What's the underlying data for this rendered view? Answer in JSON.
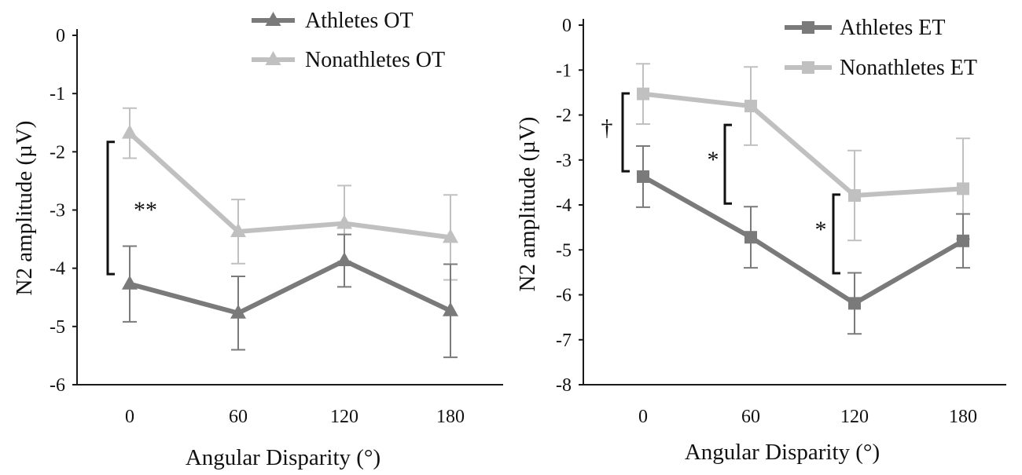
{
  "chart_data": [
    {
      "type": "line",
      "xlabel": "Angular Disparity (°)",
      "ylabel": "N2 amplitude (µV)",
      "categories": [
        "0",
        "60",
        "120",
        "180"
      ],
      "ylim": [
        -6,
        0
      ],
      "yticks": [
        "0",
        "-1",
        "-2",
        "-3",
        "-4",
        "-5",
        "-6"
      ],
      "legend_position": "top",
      "series": [
        {
          "name": "Athletes OT",
          "color": "#7a7a7a",
          "marker": "triangle",
          "values": [
            -4.27,
            -4.77,
            -3.87,
            -4.73
          ],
          "errors": [
            0.65,
            0.63,
            0.45,
            0.8
          ]
        },
        {
          "name": "Nonathletes OT",
          "color": "#c0c0c0",
          "marker": "triangle",
          "values": [
            -1.68,
            -3.37,
            -3.23,
            -3.47
          ],
          "errors": [
            0.43,
            0.55,
            0.65,
            0.73
          ]
        }
      ],
      "annotations": [
        {
          "label": "**",
          "category": "0",
          "y_from": -1.83,
          "y_to": -4.1
        }
      ]
    },
    {
      "type": "line",
      "xlabel": "Angular Disparity (°)",
      "ylabel": "N2 amplitude (µV)",
      "categories": [
        "0",
        "60",
        "120",
        "180"
      ],
      "ylim": [
        -8,
        0
      ],
      "yticks": [
        "0",
        "-1",
        "-2",
        "-3",
        "-4",
        "-5",
        "-6",
        "-7",
        "-8"
      ],
      "legend_position": "top-right",
      "series": [
        {
          "name": "Athletes ET",
          "color": "#7a7a7a",
          "marker": "square",
          "values": [
            -3.37,
            -4.72,
            -6.19,
            -4.8
          ],
          "errors": [
            0.68,
            0.68,
            0.68,
            0.6
          ]
        },
        {
          "name": "Nonathletes ET",
          "color": "#c0c0c0",
          "marker": "square",
          "values": [
            -1.53,
            -1.8,
            -3.79,
            -3.64
          ],
          "errors": [
            0.67,
            0.87,
            1.0,
            1.12
          ]
        }
      ],
      "annotations": [
        {
          "label": "†",
          "category": "0",
          "y_from": -1.52,
          "y_to": -3.25
        },
        {
          "label": "*",
          "category": "60",
          "y_from": -2.22,
          "y_to": -3.97
        },
        {
          "label": "*",
          "category": "120",
          "y_from": -3.77,
          "y_to": -5.52
        }
      ]
    }
  ]
}
